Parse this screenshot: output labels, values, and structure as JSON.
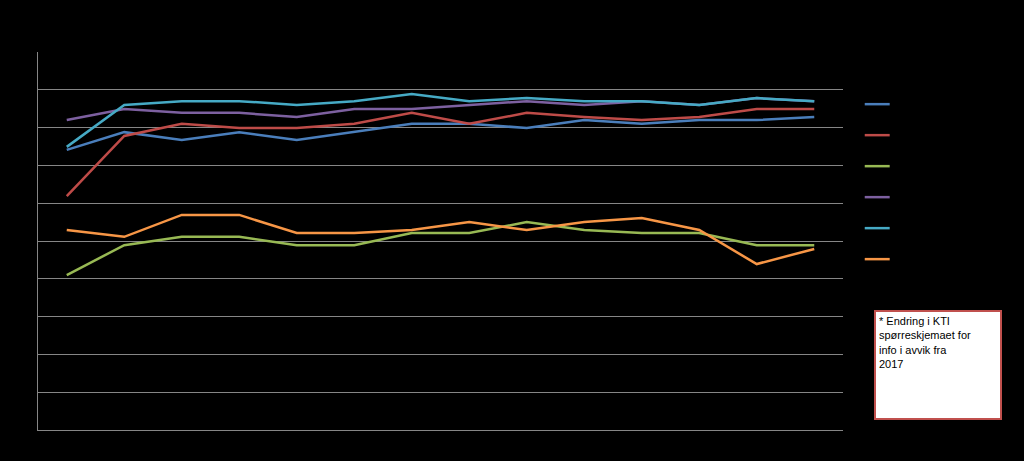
{
  "chart_data": {
    "type": "line",
    "categories": [
      null,
      null,
      null,
      null,
      null,
      null,
      null,
      null,
      null,
      null,
      null,
      null,
      null,
      null
    ],
    "series": [
      {
        "color": "#4a7ebb",
        "values": [
          7.41,
          7.88,
          7.67,
          7.88,
          7.67,
          7.88,
          8.1,
          8.1,
          7.99,
          8.2,
          8.1,
          8.2,
          8.2,
          8.28
        ]
      },
      {
        "color": "#be4b48",
        "values": [
          6.19,
          7.78,
          8.1,
          7.99,
          7.99,
          8.1,
          8.39,
          8.1,
          8.39,
          8.28,
          8.2,
          8.28,
          8.49,
          8.49
        ]
      },
      {
        "color": "#98b954",
        "values": [
          4.1,
          4.89,
          5.11,
          5.11,
          4.89,
          4.89,
          5.21,
          5.21,
          5.5,
          5.29,
          5.21,
          5.21,
          4.89,
          4.89
        ]
      },
      {
        "color": "#7d60a0",
        "values": [
          8.2,
          8.49,
          8.39,
          8.39,
          8.28,
          8.49,
          8.49,
          8.6,
          8.7,
          8.6,
          8.7,
          8.6,
          8.78,
          8.7
        ]
      },
      {
        "color": "#46aac5",
        "values": [
          7.49,
          8.6,
          8.7,
          8.7,
          8.6,
          8.7,
          8.89,
          8.7,
          8.78,
          8.7,
          8.7,
          8.6,
          8.78,
          8.7
        ]
      },
      {
        "color": "#f79646",
        "values": [
          5.29,
          5.11,
          5.69,
          5.69,
          5.21,
          5.21,
          5.29,
          5.5,
          5.29,
          5.5,
          5.61,
          5.29,
          4.39,
          4.79
        ]
      }
    ],
    "ylim": [
      0,
      10
    ],
    "yticks": [
      0,
      1,
      2,
      3,
      4,
      5,
      6,
      7,
      8,
      9,
      10
    ],
    "grid": true,
    "tick_labels": false,
    "legend": "right",
    "annotations": [
      "* Endring i KTI spørreskjemaet for info i avvik fra 2017"
    ]
  }
}
